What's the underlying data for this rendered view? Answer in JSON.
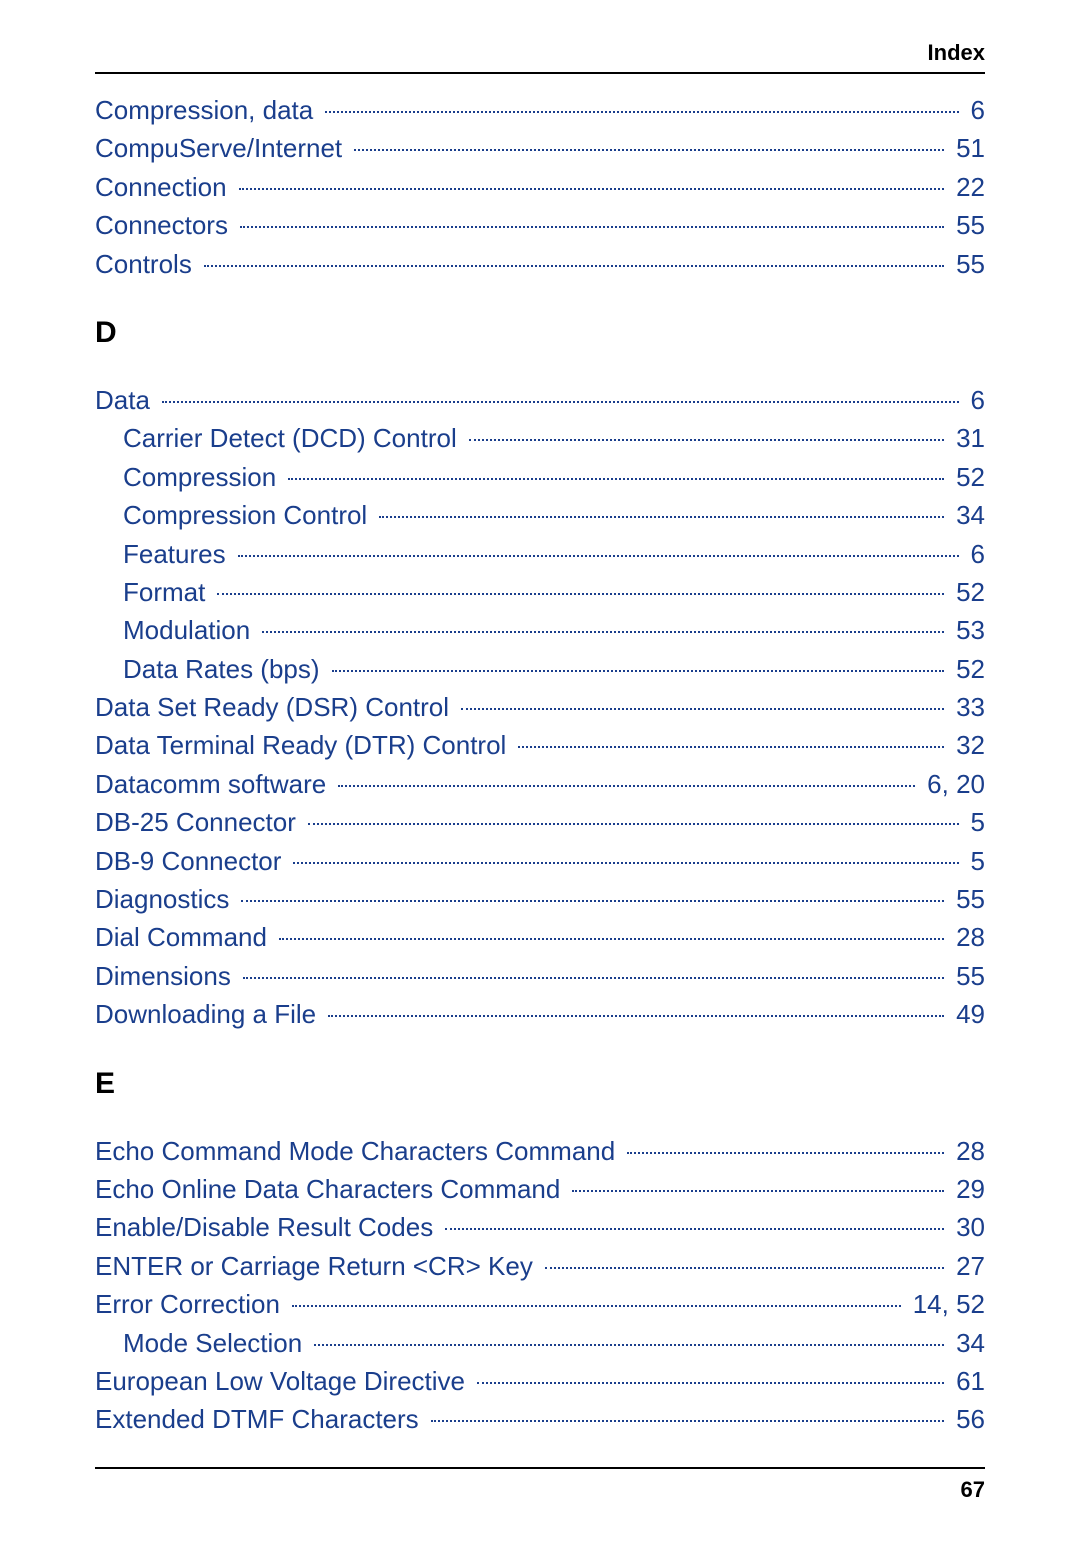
{
  "header": {
    "label": "Index"
  },
  "link_color": "#1a3e8c",
  "text_color": "#000000",
  "background_color": "#ffffff",
  "font_size_entry": 26,
  "font_size_header": 22,
  "font_size_section": 30,
  "sections": [
    {
      "letter": null,
      "entries": [
        {
          "label": "Compression, data",
          "page": "6",
          "indent": false
        },
        {
          "label": "CompuServe/Internet",
          "page": "51",
          "indent": false
        },
        {
          "label": "Connection",
          "page": "22",
          "indent": false
        },
        {
          "label": "Connectors",
          "page": "55",
          "indent": false
        },
        {
          "label": "Controls",
          "page": "55",
          "indent": false
        }
      ]
    },
    {
      "letter": "D",
      "entries": [
        {
          "label": "Data",
          "page": "6",
          "indent": false
        },
        {
          "label": "Carrier Detect (DCD) Control",
          "page": "31",
          "indent": true
        },
        {
          "label": "Compression",
          "page": "52",
          "indent": true
        },
        {
          "label": "Compression Control",
          "page": "34",
          "indent": true
        },
        {
          "label": "Features",
          "page": "6",
          "indent": true
        },
        {
          "label": "Format",
          "page": "52",
          "indent": true
        },
        {
          "label": "Modulation",
          "page": "53",
          "indent": true
        },
        {
          "label": "Data Rates (bps)",
          "page": "52",
          "indent": true
        },
        {
          "label": "Data Set Ready (DSR) Control",
          "page": "33",
          "indent": false
        },
        {
          "label": "Data Terminal Ready (DTR) Control",
          "page": "32",
          "indent": false
        },
        {
          "label": "Datacomm software",
          "page": "6,  20",
          "indent": false
        },
        {
          "label": "DB-25 Connector",
          "page": "5",
          "indent": false
        },
        {
          "label": "DB-9 Connector",
          "page": "5",
          "indent": false
        },
        {
          "label": "Diagnostics",
          "page": "55",
          "indent": false
        },
        {
          "label": "Dial Command",
          "page": "28",
          "indent": false
        },
        {
          "label": "Dimensions",
          "page": "55",
          "indent": false
        },
        {
          "label": "Downloading a File",
          "page": "49",
          "indent": false
        }
      ]
    },
    {
      "letter": "E",
      "entries": [
        {
          "label": "Echo Command Mode Characters Command",
          "page": "28",
          "indent": false
        },
        {
          "label": "Echo Online Data Characters Command",
          "page": "29",
          "indent": false
        },
        {
          "label": "Enable/Disable Result Codes",
          "page": "30",
          "indent": false
        },
        {
          "label": "ENTER or Carriage Return <CR> Key",
          "page": "27",
          "indent": false
        },
        {
          "label": "Error Correction",
          "page": "14,  52",
          "indent": false
        },
        {
          "label": "Mode Selection",
          "page": "34",
          "indent": true
        },
        {
          "label": "European Low Voltage Directive",
          "page": "61",
          "indent": false
        },
        {
          "label": "Extended DTMF Characters",
          "page": "56",
          "indent": false
        }
      ]
    }
  ],
  "footer": {
    "page_number": "67"
  }
}
